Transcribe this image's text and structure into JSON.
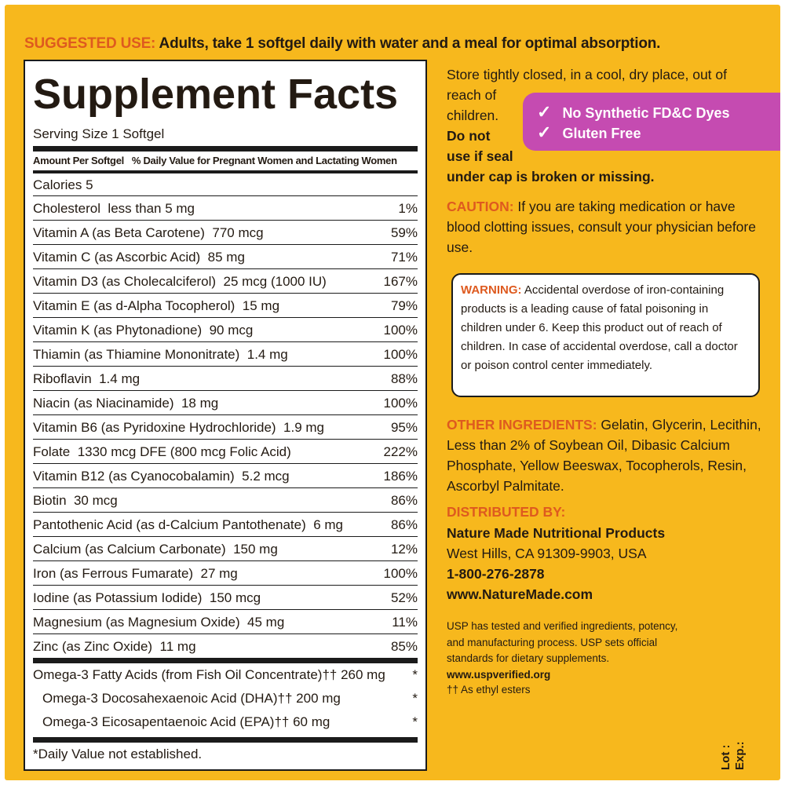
{
  "suggested_use": {
    "heading": "SUGGESTED USE:",
    "text": " Adults, take 1 softgel daily with water and a meal for optimal absorption."
  },
  "facts": {
    "title": "Supplement Facts",
    "serving_size": "Serving Size 1 Softgel",
    "amount_header": "Amount Per Softgel   % Daily Value for Pregnant Women and Lactating Women",
    "calories": "Calories 5",
    "rows": [
      {
        "name": "Cholesterol  less than 5 mg",
        "dv": "1%"
      },
      {
        "name": "Vitamin A (as Beta Carotene)  770 mcg",
        "dv": "59%"
      },
      {
        "name": "Vitamin C (as Ascorbic Acid)  85 mg",
        "dv": "71%"
      },
      {
        "name": "Vitamin D3 (as Cholecalciferol)  25 mcg (1000 IU)",
        "dv": "167%"
      },
      {
        "name": "Vitamin E (as d-Alpha Tocopherol)  15 mg",
        "dv": "79%"
      },
      {
        "name": "Vitamin K (as Phytonadione)  90 mcg",
        "dv": "100%"
      },
      {
        "name": "Thiamin (as Thiamine Mononitrate)  1.4 mg",
        "dv": "100%"
      },
      {
        "name": "Riboflavin  1.4 mg",
        "dv": "88%"
      },
      {
        "name": "Niacin (as Niacinamide)  18 mg",
        "dv": "100%"
      },
      {
        "name": "Vitamin B6 (as Pyridoxine Hydrochloride)  1.9 mg",
        "dv": "95%"
      },
      {
        "name": "Folate  1330 mcg DFE (800 mcg Folic Acid)",
        "dv": "222%"
      },
      {
        "name": "Vitamin B12 (as Cyanocobalamin)  5.2 mcg",
        "dv": "186%"
      },
      {
        "name": "Biotin  30 mcg",
        "dv": "86%"
      },
      {
        "name": "Pantothenic Acid (as d-Calcium Pantothenate)  6 mg",
        "dv": "86%"
      },
      {
        "name": "Calcium (as Calcium Carbonate)  150 mg",
        "dv": "12%"
      },
      {
        "name": "Iron (as Ferrous Fumarate)  27 mg",
        "dv": "100%"
      },
      {
        "name": "Iodine (as Potassium Iodide)  150 mcg",
        "dv": "52%"
      },
      {
        "name": "Magnesium (as Magnesium Oxide)  45 mg",
        "dv": "11%"
      },
      {
        "name": "Zinc (as Zinc Oxide)  11 mg",
        "dv": "85%"
      }
    ],
    "omega": [
      {
        "name": "Omega-3 Fatty Acids (from Fish Oil Concentrate)†† 260 mg",
        "dv": "*"
      },
      {
        "name": "Omega-3 Docosahexaenoic Acid (DHA)†† 200 mg",
        "dv": "*"
      },
      {
        "name": "Omega-3 Eicosapentaenoic Acid (EPA)†† 60 mg",
        "dv": "*"
      }
    ],
    "footnote": "*Daily Value not established."
  },
  "storage": {
    "line1": "Store tightly closed, in a cool, dry place, out of",
    "line2": "reach of",
    "line3": "children.",
    "line4": "Do not",
    "line5": "use if seal",
    "line6": "under cap is broken or missing."
  },
  "badge": {
    "item1": "No Synthetic FD&C Dyes",
    "item2": "Gluten Free",
    "check_glyph": "✓",
    "color": "#c54bb1"
  },
  "caution": {
    "heading": "CAUTION:",
    "text": " If you are taking medication or have blood clotting issues, consult your physician before use."
  },
  "warning": {
    "heading": "WARNING:",
    "text": " Accidental overdose of iron-containing products is a leading cause of fatal poisoning in children under 6. Keep this product out of reach of children. In case of accidental overdose, call a doctor or poison control center immediately."
  },
  "other_ingredients": {
    "heading": "OTHER INGREDIENTS:",
    "text": " Gelatin, Glycerin, Lecithin, Less than 2% of Soybean Oil, Dibasic Calcium Phosphate, Yellow Beeswax, Tocopherols, Resin, Ascorbyl Palmitate."
  },
  "distributor": {
    "heading": "DISTRIBUTED BY:",
    "company": "Nature Made Nutritional Products",
    "address": "West Hills, CA 91309-9903, USA",
    "phone": "1-800-276-2878",
    "website": "www.NatureMade.com"
  },
  "usp": {
    "text": "USP has tested and verified ingredients, potency, and manufacturing process. USP sets official standards for dietary supplements. ",
    "link": "www.uspverified.org"
  },
  "esters_note": "†† As ethyl esters",
  "lot_exp": {
    "lot": "Lot :",
    "exp": "Exp.:"
  },
  "colors": {
    "background": "#f7b81d",
    "accent_orange": "#de5a1f",
    "badge_purple": "#c54bb1"
  }
}
